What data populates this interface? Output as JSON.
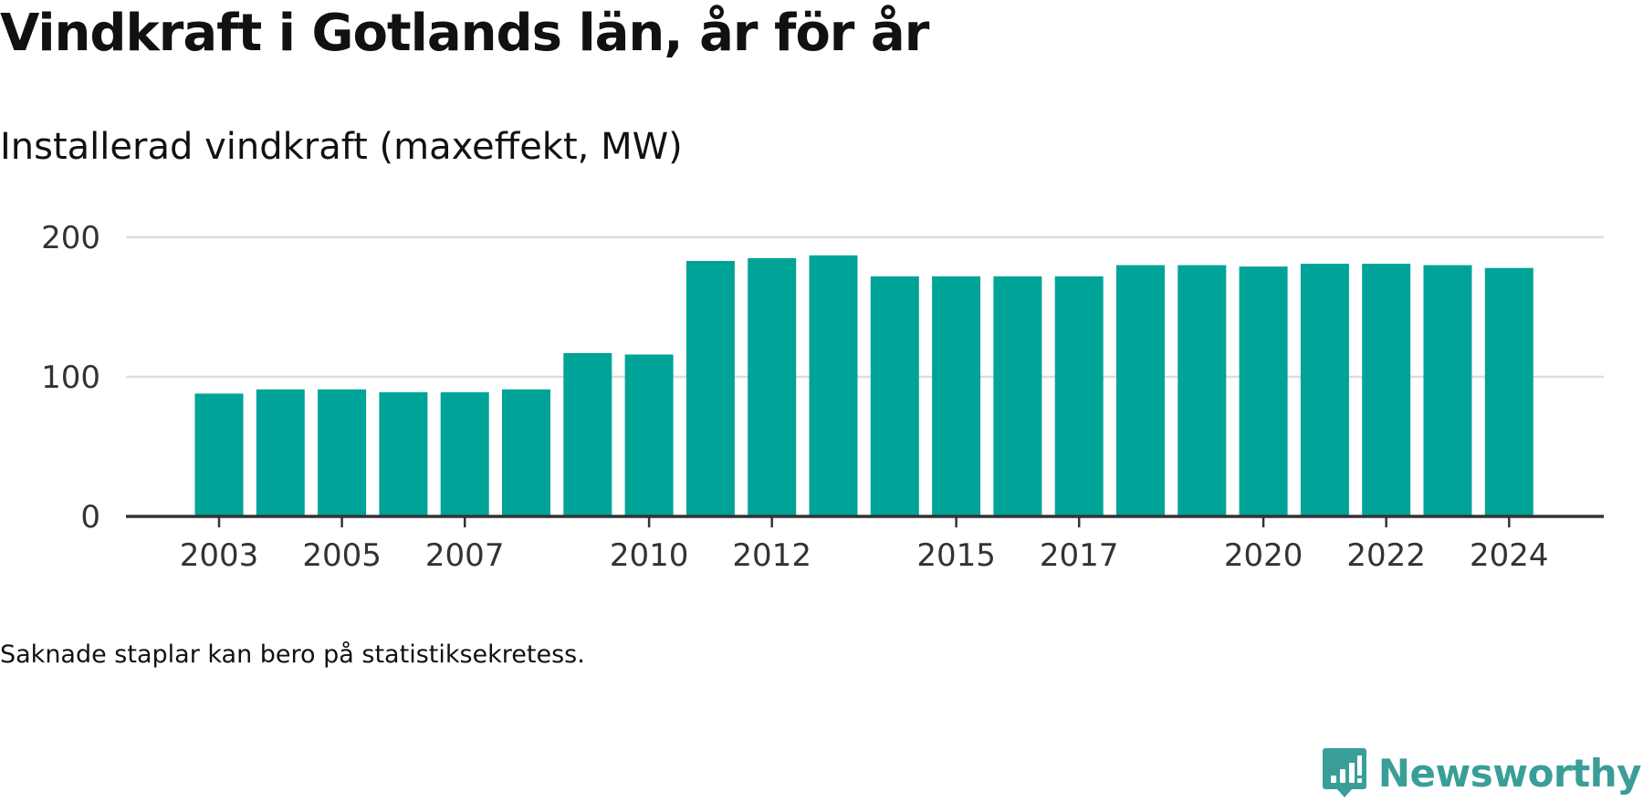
{
  "title": "Vindkraft i Gotlands län, år för år",
  "subtitle": "Installerad vindkraft (maxeffekt, MW)",
  "note": "Saknade staplar kan bero på statistiksekretess.",
  "brand": {
    "name": "Newsworthy",
    "icon": "newsworthy-logo-icon",
    "color": "#3a9e98"
  },
  "chart_data": {
    "type": "bar",
    "categories": [
      "2003",
      "2004",
      "2005",
      "2006",
      "2007",
      "2008",
      "2009",
      "2010",
      "2011",
      "2012",
      "2013",
      "2014",
      "2015",
      "2016",
      "2017",
      "2018",
      "2019",
      "2020",
      "2021",
      "2022",
      "2023",
      "2024"
    ],
    "values": [
      88,
      91,
      91,
      89,
      89,
      91,
      117,
      116,
      183,
      185,
      187,
      172,
      172,
      172,
      172,
      180,
      180,
      179,
      181,
      181,
      180,
      178
    ],
    "tick_labels": [
      "2003",
      "2005",
      "2007",
      "2010",
      "2012",
      "2015",
      "2017",
      "2020",
      "2022",
      "2024"
    ],
    "y_ticks": [
      0,
      100,
      200
    ],
    "ylim": [
      0,
      200
    ],
    "title": "Installerad vindkraft (maxeffekt, MW)",
    "xlabel": "",
    "ylabel": "",
    "grid": true,
    "bar_color": "#00a398",
    "grid_color": "#dddddd",
    "axis_color": "#333333"
  }
}
